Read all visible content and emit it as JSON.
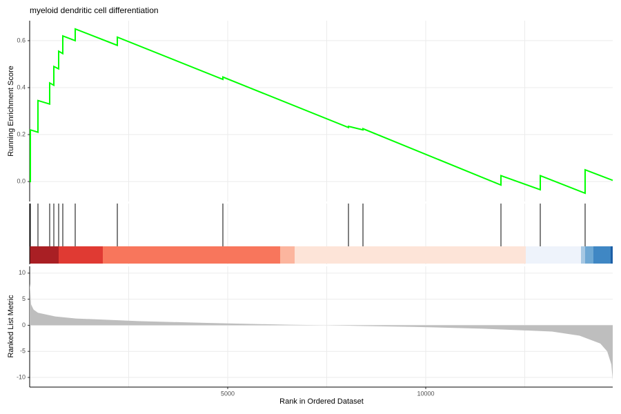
{
  "chart_data": [
    {
      "type": "line",
      "title": "myeloid dendritic cell differentiation",
      "y_label": "Running Enrichment Score",
      "color": "#00ff00",
      "x": [
        0,
        17,
        17,
        209,
        209,
        505,
        505,
        610,
        610,
        732,
        732,
        836,
        836,
        1150,
        1150,
        2213,
        2213,
        4878,
        4878,
        8049,
        8049,
        8415,
        8415,
        11899,
        11899,
        12892,
        12892,
        14024,
        14024,
        14721
      ],
      "values": [
        0,
        0,
        0.22,
        0.21,
        0.345,
        0.33,
        0.42,
        0.41,
        0.49,
        0.48,
        0.555,
        0.545,
        0.62,
        0.6,
        0.65,
        0.58,
        0.615,
        0.435,
        0.445,
        0.23,
        0.235,
        0.22,
        0.225,
        -0.015,
        0.025,
        -0.035,
        0.025,
        -0.05,
        0.05,
        0.005
      ],
      "xlim": [
        0,
        14721
      ],
      "ylim": [
        -0.085,
        0.685
      ],
      "yticks": [
        {
          "value": 0,
          "label": "0.0"
        },
        0.2,
        0.4,
        0.6
      ],
      "xgrid": [
        2500,
        5000,
        7500,
        10000,
        12500
      ],
      "grid": true
    },
    {
      "type": "rug",
      "color": "#000000",
      "x": [
        17,
        209,
        505,
        610,
        732,
        836,
        1150,
        2213,
        4878,
        8049,
        8415,
        11899,
        12892,
        14024
      ],
      "xlim": [
        0,
        14721
      ],
      "xgrid": [
        2500,
        5000,
        7500,
        10000,
        12500
      ],
      "grid": true
    },
    {
      "type": "area",
      "x_label": "Rank in Ordered Dataset",
      "y_label": "Ranked List Metric",
      "color": "#bebebe",
      "x": [
        0,
        17,
        35,
        100,
        209,
        645,
        1167,
        2735,
        4477,
        6568,
        7439,
        9704,
        11446,
        13188,
        13885,
        14408,
        14582,
        14686,
        14721
      ],
      "values": [
        8,
        6.5,
        4,
        3,
        2.4,
        1.7,
        1.3,
        0.8,
        0.45,
        0.1,
        0,
        -0.3,
        -0.65,
        -1.2,
        -2,
        -3.5,
        -5,
        -7.5,
        -10.5
      ],
      "xlim": [
        0,
        14721
      ],
      "ylim": [
        -11.85,
        11.3
      ],
      "yticks": [
        -10,
        -5,
        0,
        5,
        10
      ],
      "xticks": [
        5000,
        10000
      ],
      "xgrid": [
        2500,
        5000,
        7500,
        10000,
        12500
      ],
      "grid": true
    }
  ]
}
